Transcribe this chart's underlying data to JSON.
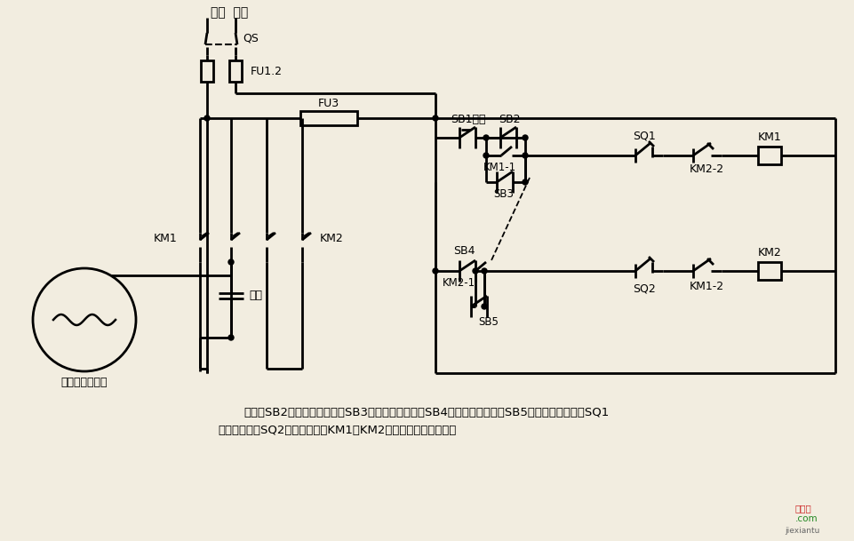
{
  "bg_color": "#f2ede0",
  "label_huoxian": "火线  零线",
  "label_QS": "QS",
  "label_FU12": "FU1.2",
  "label_FU3": "FU3",
  "label_SB1": "SB1停止",
  "label_SB2": "SB2",
  "label_KM11": "KM1-1",
  "label_SB3": "SB3",
  "label_SB4": "SB4",
  "label_KM21": "KM2-1",
  "label_SB5": "SB5",
  "label_SQ1": "SQ1",
  "label_KM1coil": "KM1",
  "label_KM22": "KM2-2",
  "label_SQ2": "SQ2",
  "label_KM2coil": "KM2",
  "label_KM12": "KM1-2",
  "label_KM1main": "KM1",
  "label_KM2main": "KM2",
  "label_cap": "电容",
  "label_motor": "单相电容电动机",
  "desc1": "说明：SB2为上升启动按鈕，SB3为上升点动按鈕，SB4为下降启动按鈕，SB5为下降点动按鈕；SQ1",
  "desc2": "为最高限位，SQ2为最低限位。KM1、KM2可用中间继电器代替。"
}
